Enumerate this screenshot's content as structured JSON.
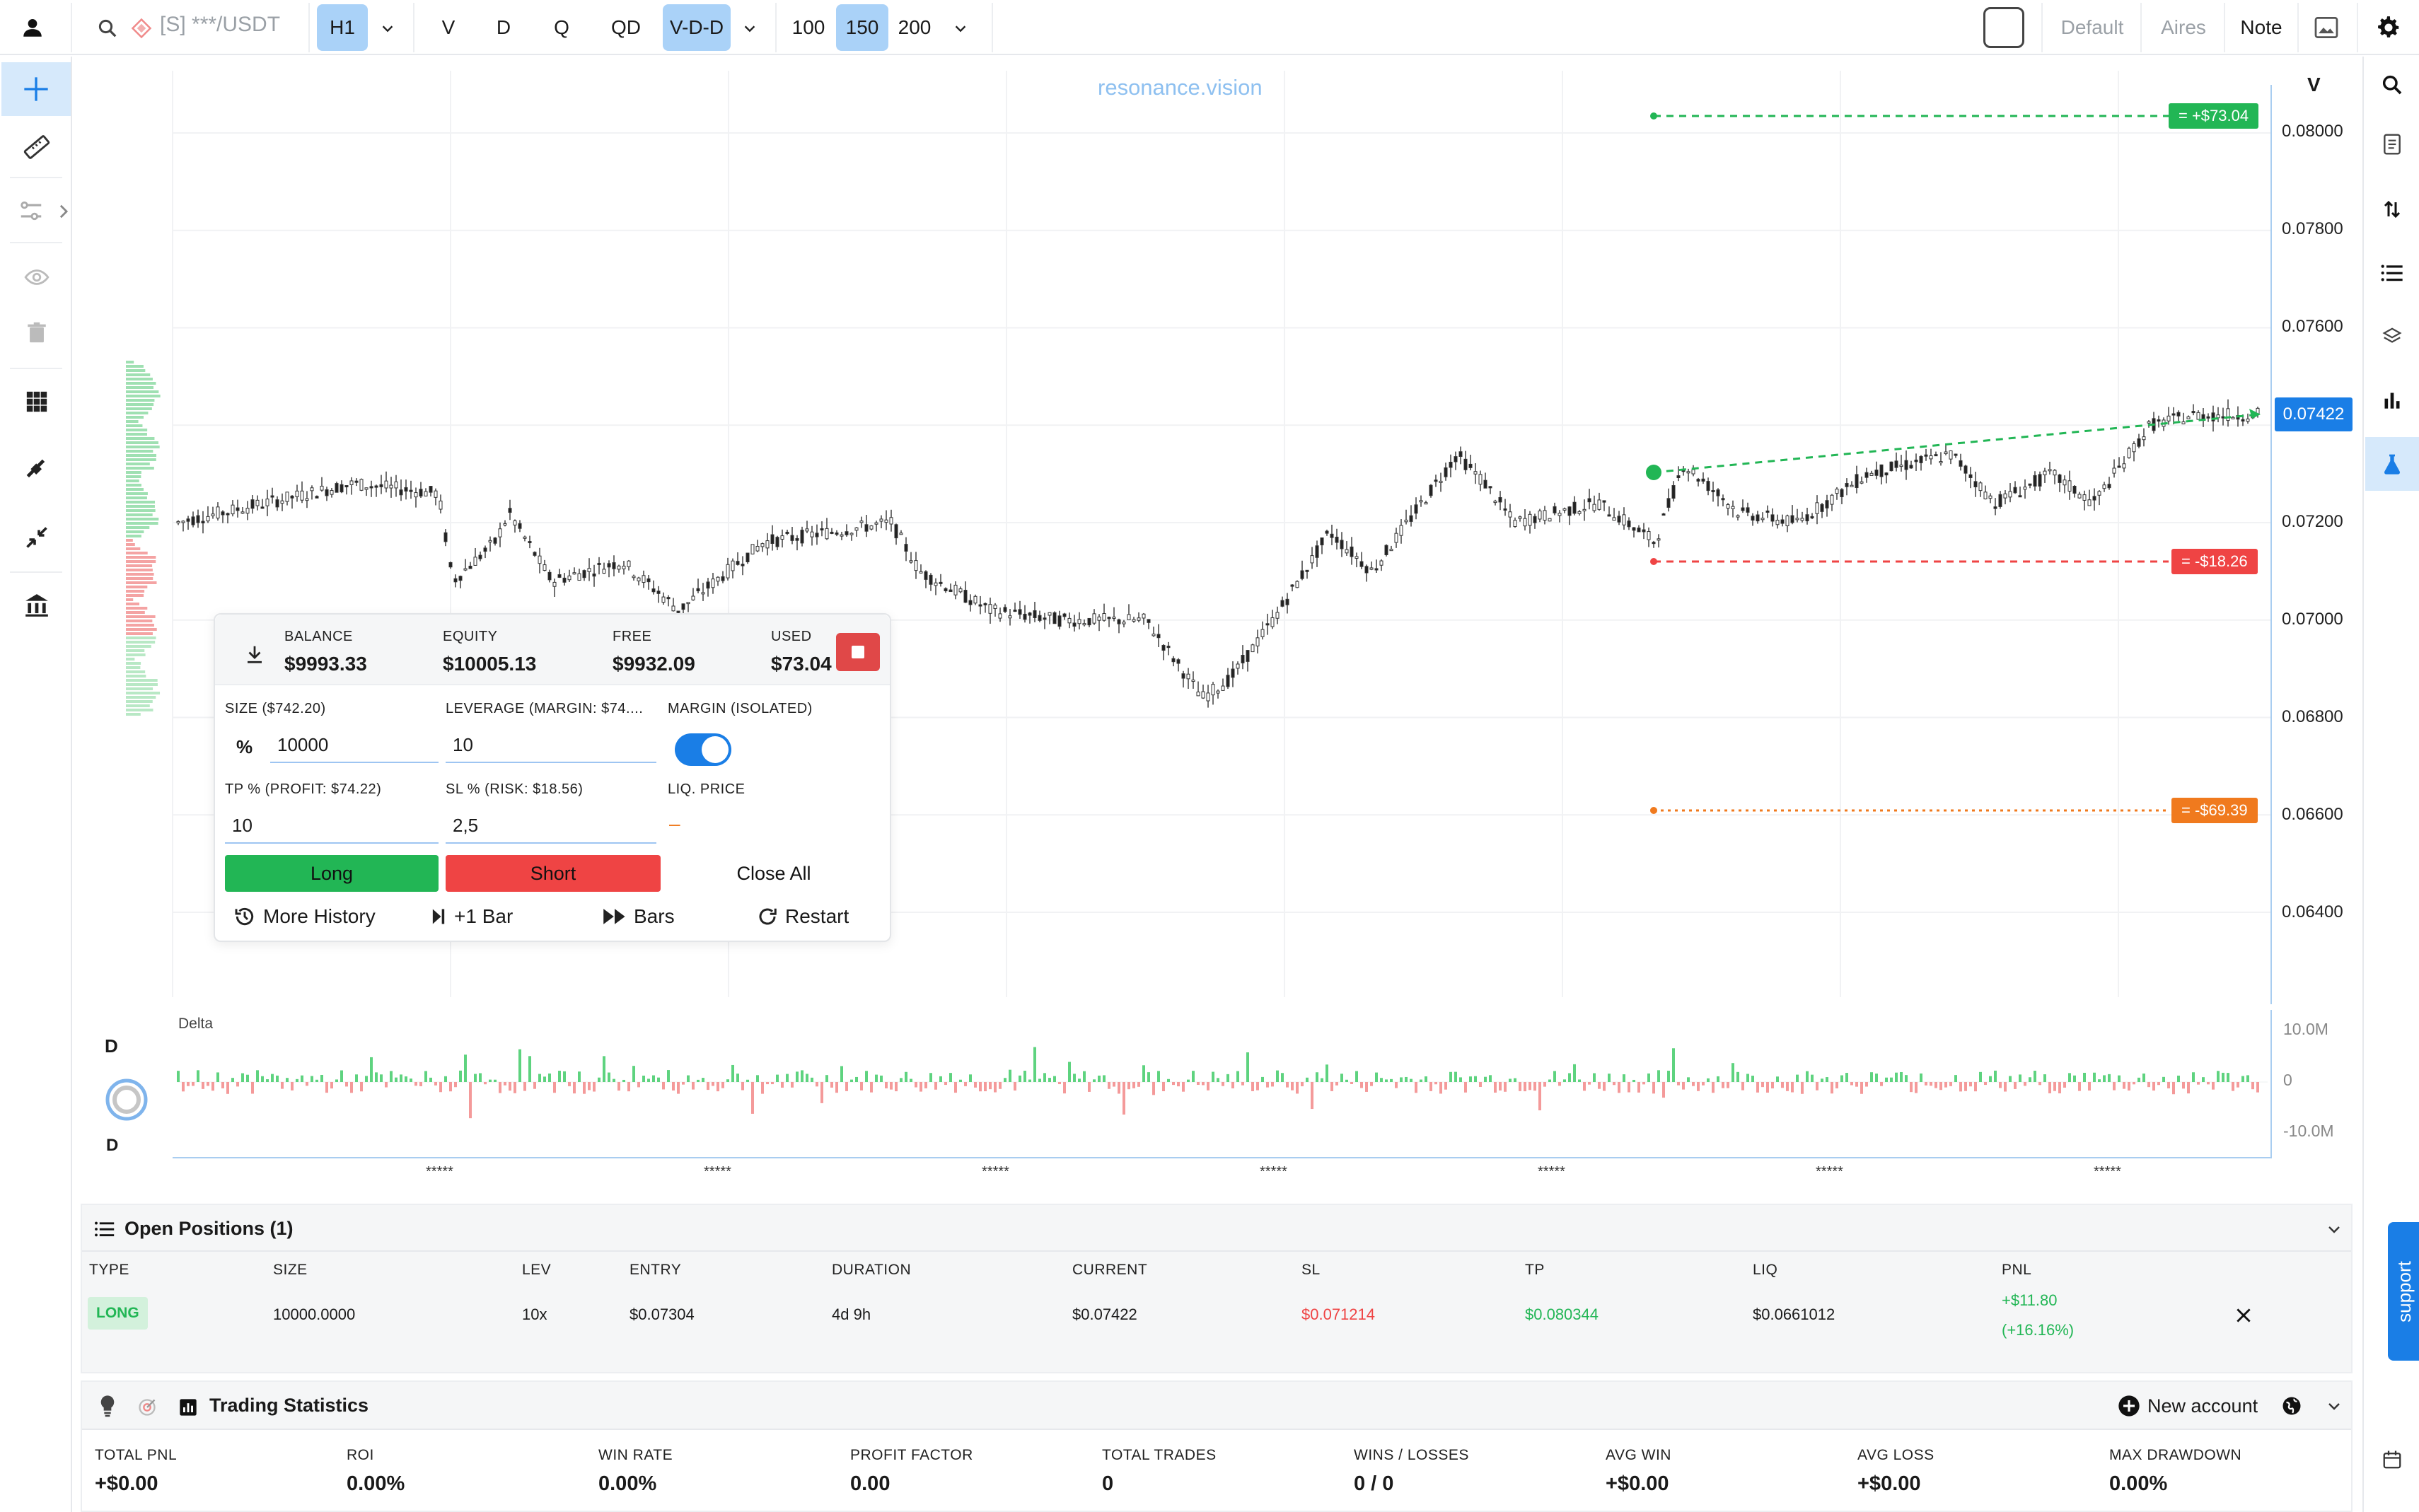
{
  "topbar": {
    "symbol": "[S] ***/USDT",
    "timeframe": "H1",
    "views": [
      "V",
      "D",
      "Q",
      "QD",
      "V-D-D"
    ],
    "active_view": "V-D-D",
    "bar_counts": [
      "100",
      "150",
      "200"
    ],
    "active_bar_count": "150",
    "layouts": [
      "Default",
      "Aires",
      "Note"
    ],
    "active_layout": "Note"
  },
  "chart": {
    "watermark": "resonance.vision",
    "axis_mode": "V",
    "price_ticks": [
      "0.08000",
      "0.07800",
      "0.07600",
      "0.07422",
      "0.07200",
      "0.07000",
      "0.06800",
      "0.06600",
      "0.06400"
    ],
    "current_price": "0.07422",
    "tp_label": "= +$73.04",
    "sl_label": "= -$18.26",
    "liq_label": "= -$69.39",
    "delta_title": "Delta",
    "delta_ticks": [
      "10.0M",
      "0",
      "-10.0M"
    ],
    "time_labels": [
      "*****",
      "*****",
      "*****",
      "*****",
      "*****",
      "*****",
      "*****"
    ],
    "indicator_letters": [
      "D",
      "D"
    ]
  },
  "panel": {
    "balance_label": "BALANCE",
    "balance": "$9993.33",
    "equity_label": "EQUITY",
    "equity": "$10005.13",
    "free_label": "FREE",
    "free": "$9932.09",
    "used_label": "USED",
    "used": "$73.04",
    "size_label": "SIZE ($742.20)",
    "size_unit": "%",
    "size_value": "10000",
    "leverage_label": "LEVERAGE (MARGIN: $74....",
    "leverage_value": "10",
    "margin_label": "MARGIN (ISOLATED)",
    "tp_label": "TP % (PROFIT: $74.22)",
    "tp_value": "10",
    "sl_label": "SL % (RISK: $18.56)",
    "sl_value": "2,5",
    "liq_label": "LIQ. PRICE",
    "liq_value": "–",
    "long_btn": "Long",
    "short_btn": "Short",
    "close_all_btn": "Close All",
    "more_history_btn": "More History",
    "plus_bar_btn": "+1 Bar",
    "bars_btn": "Bars",
    "restart_btn": "Restart"
  },
  "positions": {
    "title": "Open Positions (1)",
    "headers": [
      "TYPE",
      "SIZE",
      "LEV",
      "ENTRY",
      "DURATION",
      "CURRENT",
      "SL",
      "TP",
      "LIQ",
      "PNL"
    ],
    "row": {
      "type": "LONG",
      "size": "10000.0000",
      "lev": "10x",
      "entry": "$0.07304",
      "duration": "4d 9h",
      "current": "$0.07422",
      "sl": "$0.071214",
      "tp": "$0.080344",
      "liq": "$0.0661012",
      "pnl": "+$11.80",
      "pnl_pct": "(+16.16%)"
    }
  },
  "stats": {
    "title": "Trading Statistics",
    "new_account": "New account",
    "items": [
      {
        "label": "TOTAL PNL",
        "value": "+$0.00"
      },
      {
        "label": "ROI",
        "value": "0.00%"
      },
      {
        "label": "WIN RATE",
        "value": "0.00%"
      },
      {
        "label": "PROFIT FACTOR",
        "value": "0.00"
      },
      {
        "label": "TOTAL TRADES",
        "value": "0"
      },
      {
        "label": "WINS / LOSSES",
        "value": "0 / 0"
      },
      {
        "label": "AVG WIN",
        "value": "+$0.00"
      },
      {
        "label": "AVG LOSS",
        "value": "+$0.00"
      },
      {
        "label": "MAX DRAWDOWN",
        "value": "0.00%"
      }
    ]
  },
  "support_label": "support",
  "colors": {
    "accent": "#1a7ee6",
    "long": "#22b655",
    "short": "#ef4444",
    "liq": "#f07a1e",
    "active": "#aad2f8"
  }
}
